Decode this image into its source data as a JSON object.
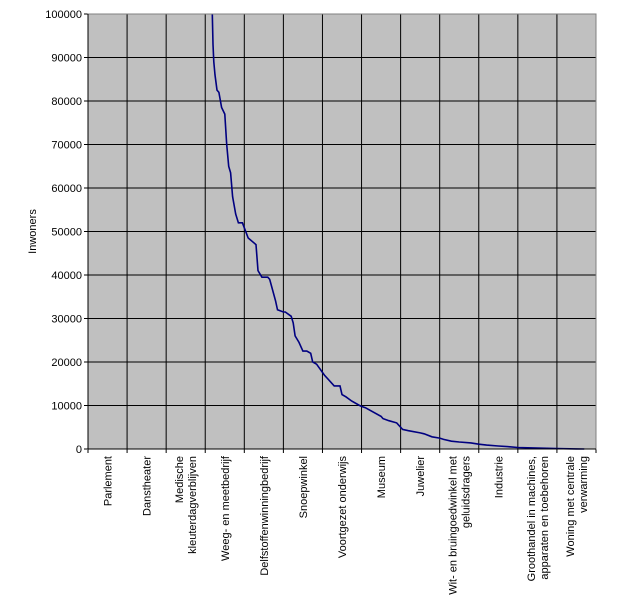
{
  "chart_data": {
    "type": "line",
    "ylabel": "Inwoners",
    "xlabel": "",
    "ylim": [
      0,
      100000
    ],
    "yticks": [
      0,
      10000,
      20000,
      30000,
      40000,
      50000,
      60000,
      70000,
      80000,
      90000,
      100000
    ],
    "grid": true,
    "legend": "none",
    "plot_background": "#c0c0c0",
    "line_color": "#000080",
    "categories": [
      [
        "Parlement"
      ],
      [
        "Danstheater"
      ],
      [
        "Medische",
        "kleuterdagverblijven"
      ],
      [
        "Weeg- en meetbedrijf"
      ],
      [
        "Delfstoffenwinningbedrijf"
      ],
      [
        "Snoepwinkel"
      ],
      [
        "Voortgezet onderwijs"
      ],
      [
        "Museum"
      ],
      [
        "Juwelier"
      ],
      [
        "Wit- en bruingoedwinkel met",
        "geluidsdragers"
      ],
      [
        "Industrie"
      ],
      [
        "Groothandel in machines,",
        "apparaten en toebehoren"
      ],
      [
        "Woning met centrale",
        "verwarming"
      ]
    ],
    "series": [
      {
        "x": [
          3.18,
          3.2,
          3.22,
          3.25,
          3.3,
          3.35,
          3.42,
          3.5,
          3.55,
          3.6,
          3.65,
          3.7,
          3.78,
          3.85,
          3.95,
          4.1,
          4.3,
          4.35,
          4.45,
          4.6,
          4.65,
          4.8,
          4.85,
          5.0,
          5.05,
          5.2,
          5.25,
          5.3,
          5.4,
          5.5,
          5.6,
          5.7,
          5.75,
          5.85,
          6.05,
          6.15,
          6.3,
          6.45,
          6.5,
          6.6,
          6.75,
          6.95,
          7.0,
          7.1,
          7.2,
          7.5,
          7.55,
          7.7,
          7.9,
          8.05,
          8.2,
          8.5,
          8.6,
          8.8,
          9.0,
          9.1,
          9.3,
          9.5,
          9.8,
          10.0,
          10.2,
          10.5,
          10.8,
          11.0,
          11.5,
          12.0,
          12.5,
          12.7
        ],
        "y": [
          100000,
          93000,
          89000,
          86000,
          82500,
          82000,
          78500,
          77000,
          70000,
          65000,
          63500,
          58000,
          54000,
          52000,
          52000,
          48500,
          47000,
          41000,
          39500,
          39500,
          39000,
          34000,
          32000,
          31500,
          31500,
          30500,
          29000,
          26000,
          24500,
          22500,
          22500,
          22000,
          20000,
          19500,
          17000,
          16000,
          14500,
          14500,
          12500,
          12000,
          11000,
          10000,
          9800,
          9500,
          9000,
          7500,
          7000,
          6500,
          6000,
          4500,
          4200,
          3700,
          3500,
          2800,
          2500,
          2200,
          1800,
          1600,
          1400,
          1100,
          900,
          700,
          500,
          350,
          200,
          100,
          30,
          0
        ]
      }
    ]
  }
}
